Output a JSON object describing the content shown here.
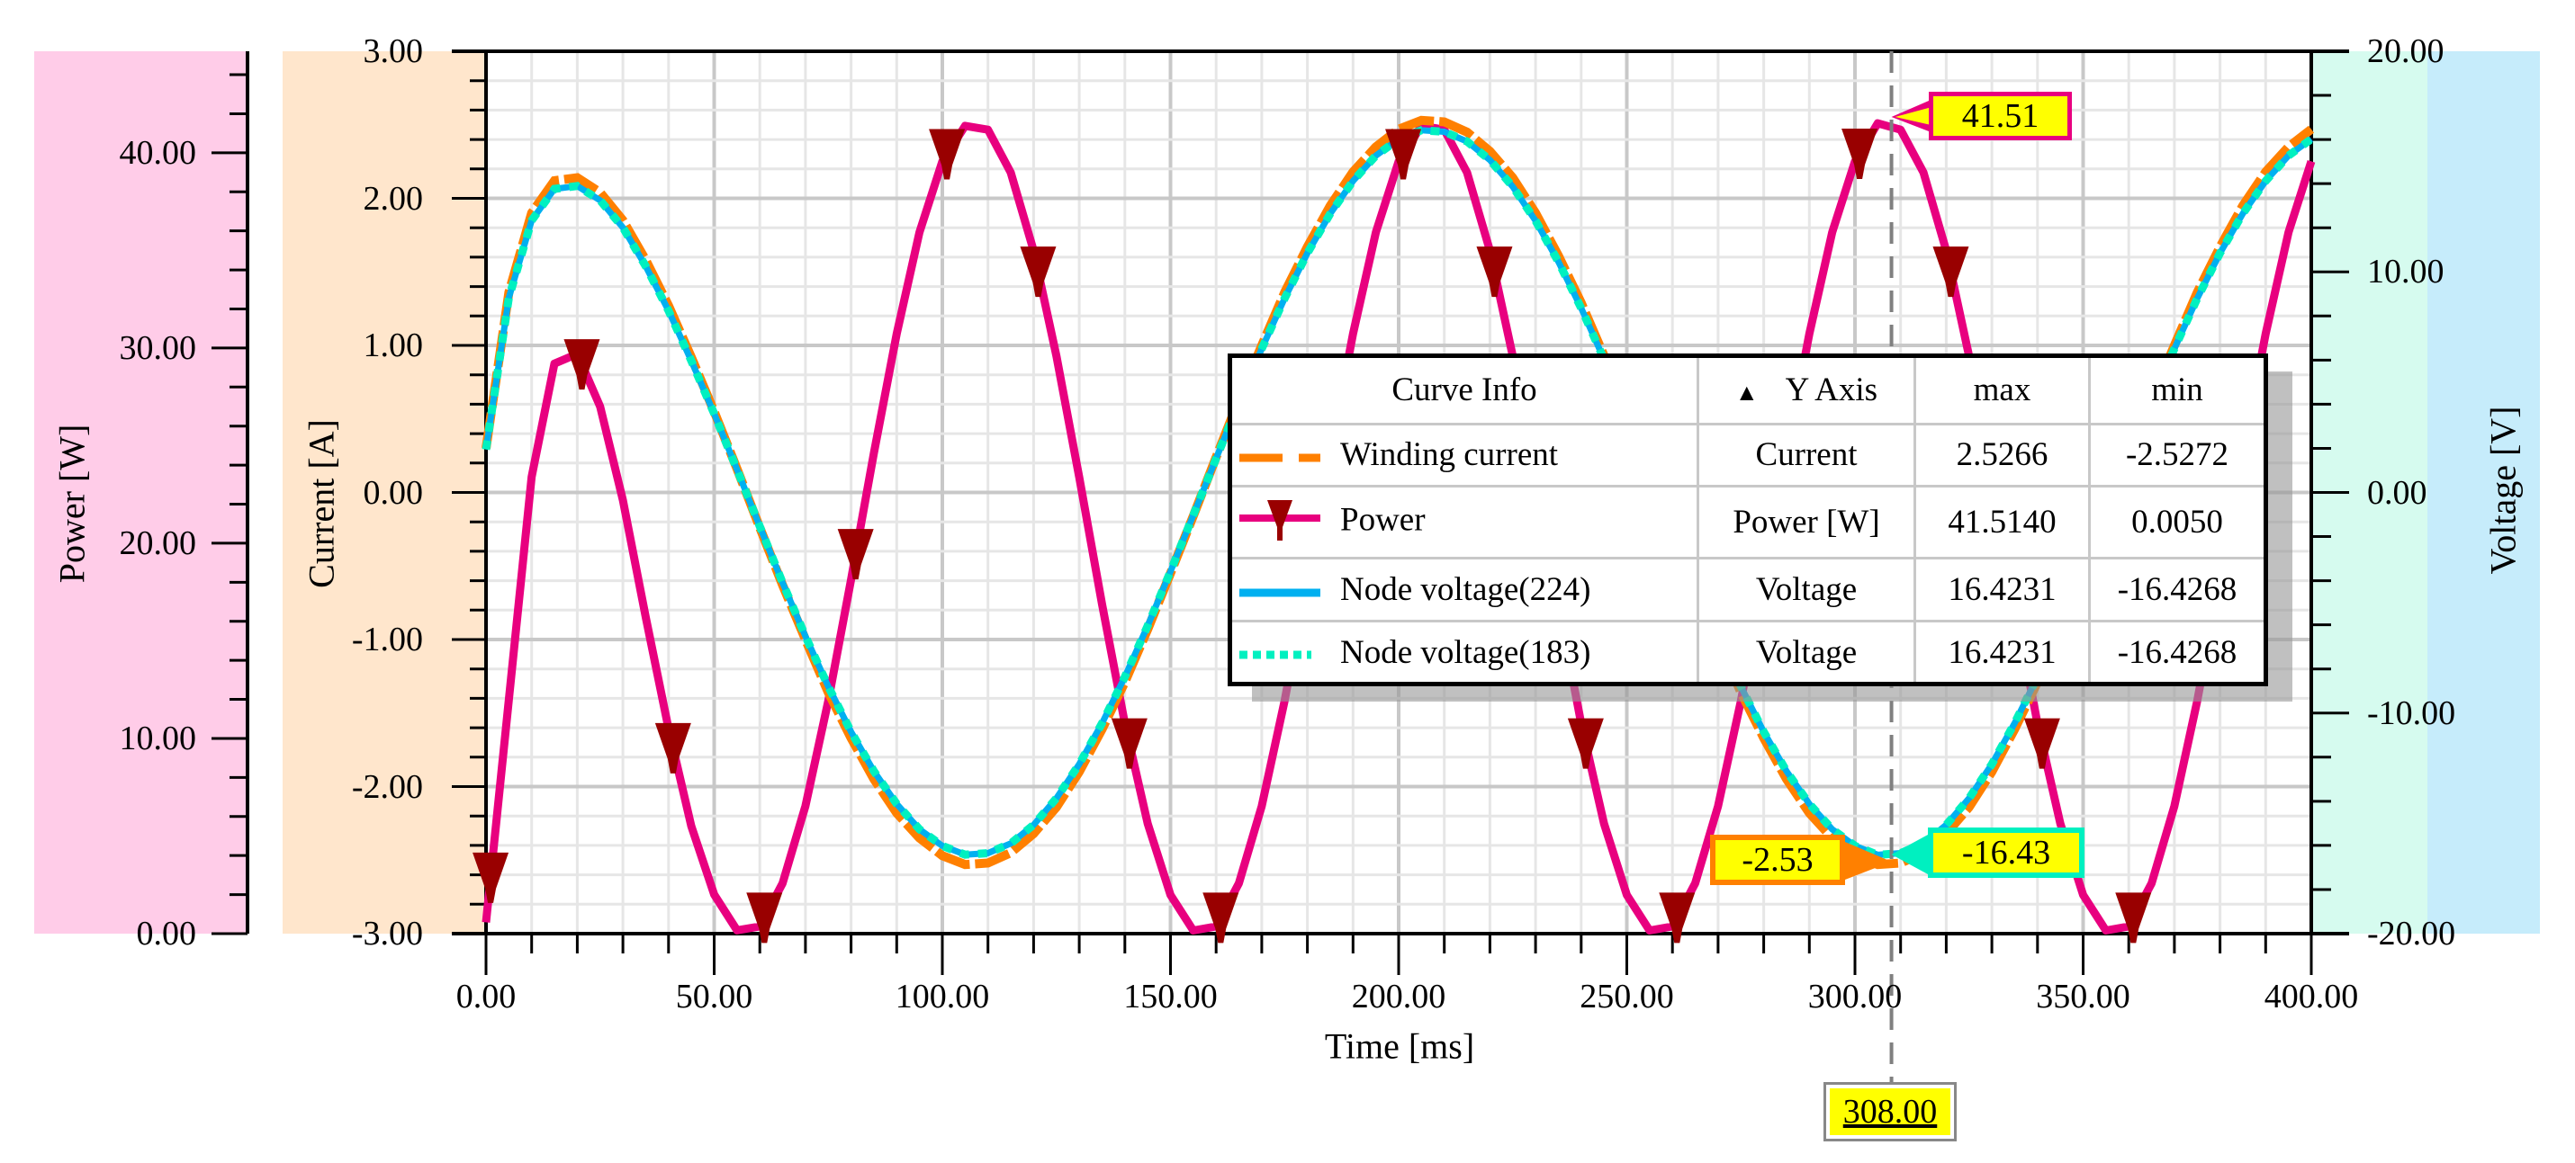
{
  "chart_data": {
    "type": "line",
    "xlabel": "Time [ms]",
    "xlim": [
      0,
      400
    ],
    "x_ticks": [
      "0.00",
      "50.00",
      "100.00",
      "150.00",
      "200.00",
      "250.00",
      "300.00",
      "350.00",
      "400.00"
    ],
    "y_axes": [
      {
        "id": "power",
        "label": "Power [W]",
        "range": [
          0,
          45.2
        ],
        "ticks": [
          "0.00",
          "10.00",
          "20.00",
          "30.00",
          "40.00"
        ],
        "panel_color": "#ffcce8",
        "position": "left-outer"
      },
      {
        "id": "current",
        "label": "Current [A]",
        "range": [
          -3,
          3
        ],
        "ticks": [
          "-3.00",
          "-2.00",
          "-1.00",
          "0.00",
          "1.00",
          "2.00",
          "3.00"
        ],
        "panel_color": "#ffe6cc",
        "position": "left-inner"
      },
      {
        "id": "voltage",
        "label": "Voltage [V]",
        "range": [
          -20,
          20
        ],
        "ticks": [
          "-20.00",
          "-10.00",
          "0.00",
          "10.00",
          "20.00"
        ],
        "panel_color": "#d6fbef",
        "panel_color2": "#c6ecfb",
        "position": "right"
      }
    ],
    "x": [
      0,
      5,
      10,
      15,
      20,
      25,
      30,
      35,
      40,
      45,
      50,
      55,
      60,
      65,
      70,
      75,
      80,
      85,
      90,
      95,
      100,
      105,
      110,
      115,
      120,
      125,
      130,
      135,
      140,
      145,
      150,
      155,
      160,
      165,
      170,
      175,
      180,
      185,
      190,
      195,
      200,
      205,
      210,
      215,
      220,
      225,
      230,
      235,
      240,
      245,
      250,
      255,
      260,
      265,
      270,
      275,
      280,
      285,
      290,
      295,
      300,
      305,
      310,
      315,
      320,
      325,
      330,
      335,
      340,
      345,
      350,
      355,
      360,
      365,
      370,
      375,
      380,
      385,
      390,
      395,
      400
    ],
    "series": [
      {
        "name": "Winding current",
        "axis": "current",
        "color": "#ff8000",
        "style": "dashed",
        "values": [
          0.3,
          1.36,
          1.9,
          2.12,
          2.14,
          2.04,
          1.85,
          1.58,
          1.27,
          0.92,
          0.55,
          0.16,
          -0.24,
          -0.63,
          -1.0,
          -1.36,
          -1.67,
          -1.95,
          -2.18,
          -2.35,
          -2.47,
          -2.53,
          -2.52,
          -2.45,
          -2.32,
          -2.14,
          -1.9,
          -1.61,
          -1.29,
          -0.93,
          -0.55,
          -0.16,
          0.24,
          0.63,
          1.0,
          1.36,
          1.67,
          1.95,
          2.18,
          2.35,
          2.47,
          2.53,
          2.52,
          2.45,
          2.32,
          2.14,
          1.9,
          1.61,
          1.29,
          0.93,
          0.55,
          0.16,
          -0.24,
          -0.63,
          -1.0,
          -1.36,
          -1.67,
          -1.95,
          -2.18,
          -2.35,
          -2.47,
          -2.53,
          -2.52,
          -2.45,
          -2.32,
          -2.14,
          -1.9,
          -1.61,
          -1.29,
          -0.93,
          -0.55,
          -0.16,
          0.24,
          0.63,
          1.0,
          1.36,
          1.67,
          1.95,
          2.18,
          2.35,
          2.47
        ]
      },
      {
        "name": "Power",
        "axis": "power",
        "color": "#e8007f",
        "marker": "down-triangle",
        "marker_color": "#990000",
        "marker_every_ms": 20,
        "marker_start_ms": 1,
        "values": [
          0.58,
          12.0,
          23.4,
          29.2,
          29.7,
          27.0,
          22.2,
          16.2,
          10.5,
          5.5,
          2.0,
          0.17,
          0.37,
          2.58,
          6.54,
          11.93,
          18.14,
          24.63,
          30.73,
          35.93,
          39.56,
          41.38,
          41.18,
          38.99,
          34.99,
          29.58,
          23.38,
          16.86,
          10.77,
          5.63,
          1.98,
          0.16,
          0.37,
          2.58,
          6.54,
          11.93,
          18.14,
          24.63,
          30.73,
          35.93,
          39.56,
          41.38,
          41.18,
          38.99,
          34.99,
          29.58,
          23.38,
          16.86,
          10.77,
          5.63,
          1.98,
          0.16,
          0.37,
          2.58,
          6.54,
          11.93,
          18.14,
          24.63,
          30.73,
          35.93,
          39.56,
          41.51,
          41.18,
          38.99,
          34.99,
          29.58,
          23.38,
          16.86,
          10.77,
          5.63,
          1.98,
          0.16,
          0.37,
          2.58,
          6.54,
          11.93,
          18.14,
          24.63,
          30.73,
          35.93,
          39.56
        ]
      },
      {
        "name": "Node voltage(224)",
        "axis": "voltage",
        "color": "#00b0f0",
        "style": "solid",
        "values": [
          1.95,
          8.83,
          12.33,
          13.76,
          13.89,
          13.24,
          12.01,
          10.25,
          8.24,
          5.97,
          3.57,
          1.04,
          -1.54,
          -4.09,
          -6.52,
          -8.8,
          -10.85,
          -12.64,
          -14.12,
          -15.27,
          -16.02,
          -16.42,
          -16.35,
          -15.91,
          -15.07,
          -13.86,
          -12.32,
          -10.46,
          -8.36,
          -6.04,
          -3.58,
          -1.03,
          1.54,
          4.09,
          6.52,
          8.8,
          10.85,
          12.64,
          14.12,
          15.27,
          16.02,
          16.42,
          16.35,
          15.91,
          15.07,
          13.86,
          12.32,
          10.46,
          8.36,
          6.04,
          3.58,
          1.03,
          -1.54,
          -4.09,
          -6.52,
          -8.8,
          -10.85,
          -12.64,
          -14.12,
          -15.27,
          -16.02,
          -16.43,
          -16.35,
          -15.91,
          -15.07,
          -13.86,
          -12.32,
          -10.46,
          -8.36,
          -6.04,
          -3.58,
          -1.03,
          1.54,
          4.09,
          6.52,
          8.8,
          10.85,
          12.64,
          14.12,
          15.27,
          16.02
        ]
      },
      {
        "name": "Node voltage(183)",
        "axis": "voltage",
        "color": "#00f0c0",
        "style": "dotted",
        "values": [
          1.95,
          8.83,
          12.33,
          13.76,
          13.89,
          13.24,
          12.01,
          10.25,
          8.24,
          5.97,
          3.57,
          1.04,
          -1.54,
          -4.09,
          -6.52,
          -8.8,
          -10.85,
          -12.64,
          -14.12,
          -15.27,
          -16.02,
          -16.42,
          -16.35,
          -15.91,
          -15.07,
          -13.86,
          -12.32,
          -10.46,
          -8.36,
          -6.04,
          -3.58,
          -1.03,
          1.54,
          4.09,
          6.52,
          8.8,
          10.85,
          12.64,
          14.12,
          15.27,
          16.02,
          16.42,
          16.35,
          15.91,
          15.07,
          13.86,
          12.32,
          10.46,
          8.36,
          6.04,
          3.58,
          1.03,
          -1.54,
          -4.09,
          -6.52,
          -8.8,
          -10.85,
          -12.64,
          -14.12,
          -15.27,
          -16.02,
          -16.43,
          -16.35,
          -15.91,
          -15.07,
          -13.86,
          -12.32,
          -10.46,
          -8.36,
          -6.04,
          -3.58,
          -1.03,
          1.54,
          4.09,
          6.52,
          8.8,
          10.85,
          12.64,
          14.12,
          15.27,
          16.02
        ]
      }
    ],
    "cursor": {
      "x": 308.0,
      "x_label": "308.00",
      "annotations": [
        {
          "series": "Power",
          "value": "41.51",
          "border": "#e8007f"
        },
        {
          "series": "Winding current",
          "value": "-2.53",
          "border": "#ff8000"
        },
        {
          "series": "Node voltage",
          "value": "-16.43",
          "border": "#00f0c0"
        }
      ]
    },
    "grid": true,
    "legend_position": "overlay-center-right"
  },
  "legend": {
    "headers": {
      "curve_info": "Curve Info",
      "y_axis": "Y Axis",
      "max": "max",
      "min": "min",
      "sort_icon": "▲"
    },
    "rows": [
      {
        "name": "Winding current",
        "axis": "Current",
        "max": "2.5266",
        "min": "-2.5272"
      },
      {
        "name": "Power",
        "axis": "Power [W]",
        "max": "41.5140",
        "min": "0.0050"
      },
      {
        "name": "Node voltage(224)",
        "axis": "Voltage",
        "max": "16.4231",
        "min": "-16.4268"
      },
      {
        "name": "Node voltage(183)",
        "axis": "Voltage",
        "max": "16.4231",
        "min": "-16.4268"
      }
    ]
  },
  "labels": {
    "power_axis": "Power [W]",
    "current_axis": "Current [A]",
    "voltage_axis": "Voltage [V]",
    "time_axis": "Time [ms]",
    "cursor_x": "308.00",
    "cursor_power": "41.51",
    "cursor_current": "-2.53",
    "cursor_voltage": "-16.43"
  }
}
